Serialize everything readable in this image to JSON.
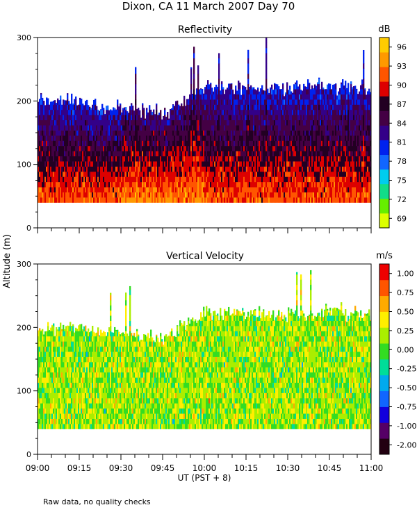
{
  "figure_title": "Dixon, CA 11 March 2007  Day  70",
  "y_axis_label": "Altitude (m)",
  "x_axis_label": "UT  (PST + 8)",
  "footnote": "Raw data, no quality checks",
  "chart_data": [
    {
      "type": "heatmap",
      "title": "Reflectivity",
      "colorbar_unit": "dB",
      "xlabel": "UT  (PST + 8)",
      "ylabel": "Altitude (m)",
      "xlim": [
        "09:00",
        "11:00"
      ],
      "x_tick_labels": [
        "09:00",
        "09:15",
        "09:30",
        "09:45",
        "10:00",
        "10:15",
        "10:30",
        "10:45",
        "11:00"
      ],
      "ylim": [
        0,
        300
      ],
      "y_tick_labels": [
        "0",
        "100",
        "200",
        "300"
      ],
      "colorbar_ticks": [
        "69",
        "72",
        "75",
        "78",
        "81",
        "84",
        "87",
        "90",
        "93",
        "96"
      ],
      "colorbar_range": [
        68,
        98
      ],
      "colorscale": [
        "#ddff00",
        "#66ee00",
        "#11dd88",
        "#00ccee",
        "#1166ff",
        "#0022ee",
        "#330088",
        "#440044",
        "#220022",
        "#dd0000",
        "#ff5500",
        "#ff9900",
        "#ffcc00"
      ],
      "gate_bottom_m": 40,
      "echo_top_m_approx": [
        {
          "time": "09:00",
          "top": 200
        },
        {
          "time": "09:15",
          "top": 200
        },
        {
          "time": "09:30",
          "top": 190
        },
        {
          "time": "09:45",
          "top": 180
        },
        {
          "time": "10:00",
          "top": 225
        },
        {
          "time": "10:15",
          "top": 220
        },
        {
          "time": "10:30",
          "top": 220
        },
        {
          "time": "10:45",
          "top": 225
        },
        {
          "time": "11:00",
          "top": 220
        }
      ],
      "description_values_dB_by_height": [
        {
          "altitude_m": 50,
          "typical_dB": 92
        },
        {
          "altitude_m": 100,
          "typical_dB": 87
        },
        {
          "altitude_m": 150,
          "typical_dB": 84
        },
        {
          "altitude_m": 200,
          "typical_dB": 81
        }
      ]
    },
    {
      "type": "heatmap",
      "title": "Vertical Velocity",
      "colorbar_unit": "m/s",
      "xlabel": "UT  (PST + 8)",
      "ylabel": "Altitude (m)",
      "xlim": [
        "09:00",
        "11:00"
      ],
      "x_tick_labels": [
        "09:00",
        "09:15",
        "09:30",
        "09:45",
        "10:00",
        "10:15",
        "10:30",
        "10:45",
        "11:00"
      ],
      "ylim": [
        0,
        300
      ],
      "y_tick_labels": [
        "0",
        "100",
        "200",
        "300"
      ],
      "colorbar_ticks": [
        "-2.00",
        "-1.00",
        "-0.75",
        "-0.50",
        "-0.25",
        "0.00",
        "0.25",
        "0.50",
        "0.75",
        "1.00"
      ],
      "colorbar_range": [
        -2.0,
        1.25
      ],
      "colorscale": [
        "#220011",
        "#550066",
        "#1100dd",
        "#1166ff",
        "#00aaee",
        "#00dd99",
        "#33dd22",
        "#aaee00",
        "#ffee00",
        "#ffaa00",
        "#ff5500",
        "#ee0000"
      ],
      "gate_bottom_m": 40,
      "typical_velocity_m_s": 0.0
    }
  ]
}
